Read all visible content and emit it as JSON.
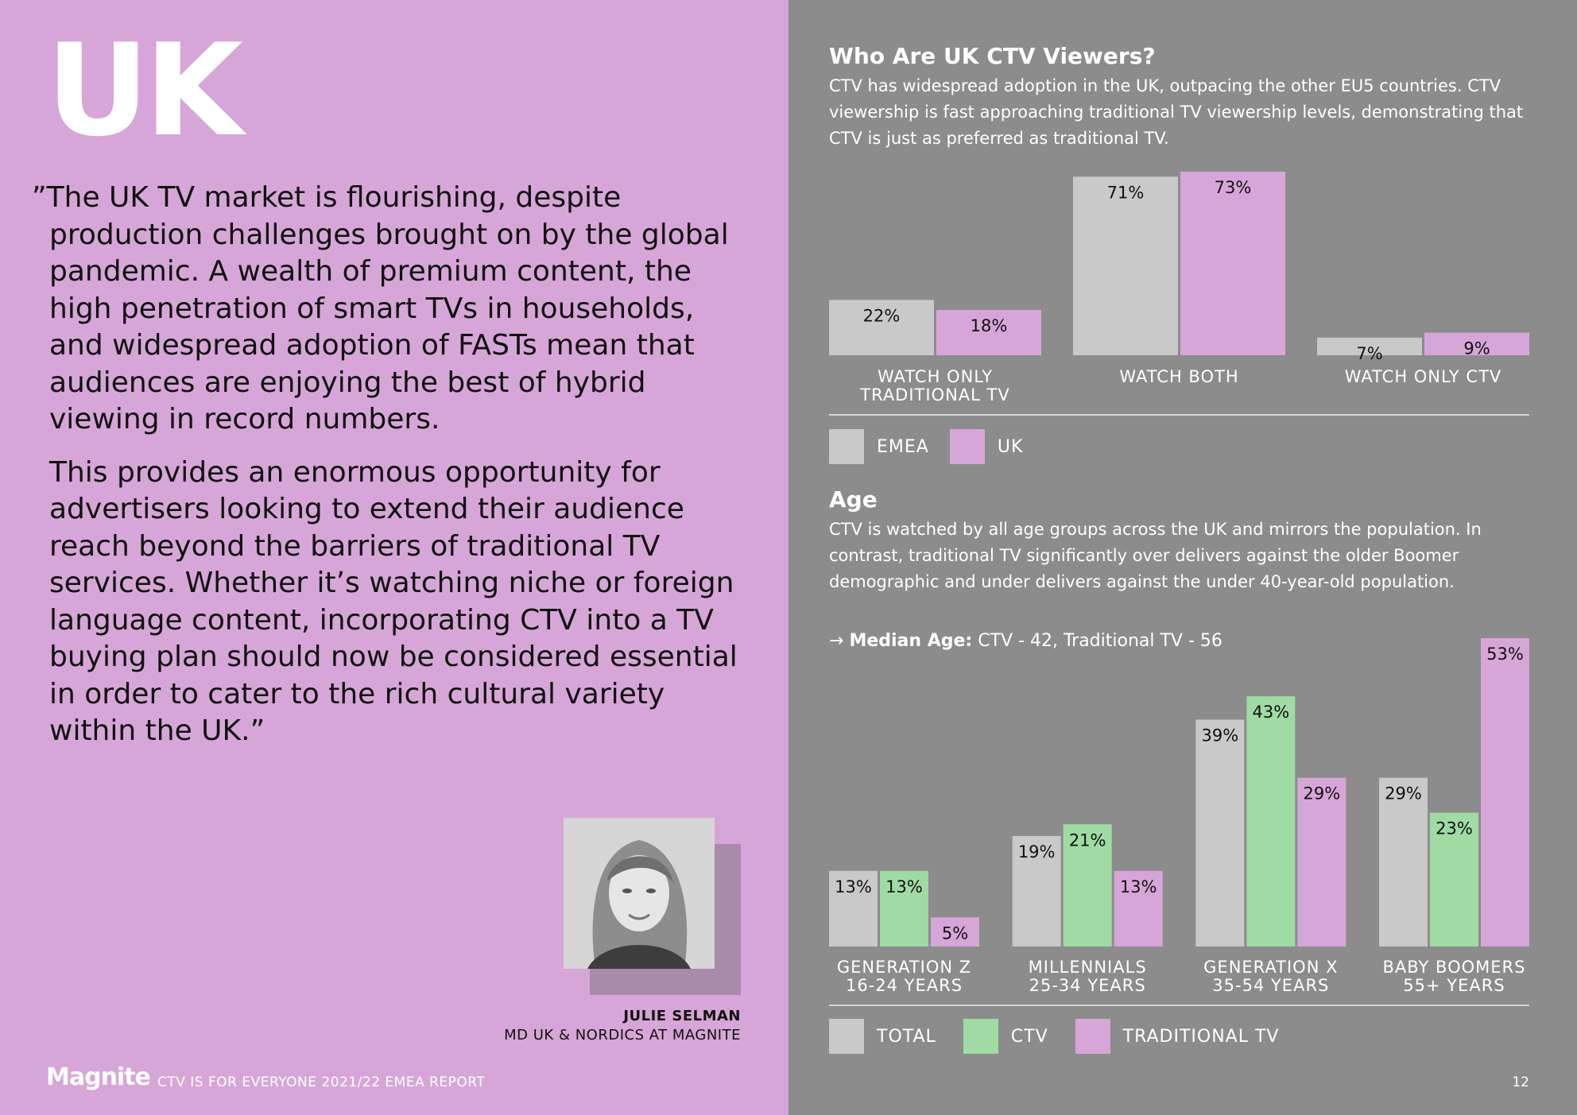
{
  "left": {
    "title": "UK",
    "quote_p1": "”The UK TV market is flourishing, despite production challenges brought on by the global pandemic. A wealth of premium content, the high penetration of smart TVs in households, and widespread adoption of FASTs mean that audiences are enjoying the best of hybrid viewing in record numbers.",
    "quote_p2": "This provides an enormous opportunity for advertisers looking to extend their audience reach beyond the barriers of traditional TV services. Whether it’s watching niche or foreign language content, incorporating CTV into a TV buying plan should now be considered essential in order to cater to the rich cultural variety within the UK.”",
    "person_name": "JULIE SELMAN",
    "person_role": "MD UK & NORDICS AT MAGNITE",
    "logo": "Magnite",
    "footer": "CTV IS FOR EVERYONE 2021/22 EMEA REPORT"
  },
  "right": {
    "section1_title": "Who Are UK CTV Viewers?",
    "section1_text": "CTV has widespread adoption in the UK, outpacing the other EU5 countries. CTV viewership is fast approaching traditional TV viewership levels, demonstrating that CTV is just as preferred as traditional TV.",
    "section2_title": "Age",
    "section2_text": "CTV is watched by all age groups across the UK and mirrors the population. In contrast, traditional TV significantly over delivers against the older Boomer demographic and under delivers against the under 40-year-old population.",
    "median_arrow": "→",
    "median_label": "Median Age:",
    "median_value": " CTV - 42, Traditional TV - 56",
    "page_number": "12"
  },
  "chart_data": [
    {
      "type": "bar",
      "title": "Who Are UK CTV Viewers?",
      "categories": [
        [
          "WATCH ONLY",
          "TRADITIONAL TV"
        ],
        [
          "WATCH BOTH"
        ],
        [
          "WATCH ONLY CTV"
        ]
      ],
      "series": [
        {
          "name": "EMEA",
          "color": "#c9c9c9",
          "values": [
            22,
            71,
            7
          ],
          "labels": [
            "22%",
            "71%",
            "7%"
          ]
        },
        {
          "name": "UK",
          "color": "#d7a6d8",
          "values": [
            18,
            73,
            9
          ],
          "labels": [
            "18%",
            "73%",
            "9%"
          ]
        }
      ],
      "ylim": [
        0,
        73
      ],
      "legend": "bottom-left"
    },
    {
      "type": "bar",
      "title": "Age",
      "categories": [
        [
          "GENERATION Z",
          "16-24 YEARS"
        ],
        [
          "MILLENNIALS",
          "25-34 YEARS"
        ],
        [
          "GENERATION X",
          "35-54 YEARS"
        ],
        [
          "BABY BOOMERS",
          "55+ YEARS"
        ]
      ],
      "series": [
        {
          "name": "TOTAL",
          "color": "#c9c9c9",
          "values": [
            13,
            19,
            39,
            29
          ],
          "labels": [
            "13%",
            "19%",
            "39%",
            "29%"
          ]
        },
        {
          "name": "CTV",
          "color": "#a0dba4",
          "values": [
            13,
            21,
            43,
            23
          ],
          "labels": [
            "13%",
            "21%",
            "43%",
            "23%"
          ]
        },
        {
          "name": "TRADITIONAL TV",
          "color": "#d7a6d8",
          "values": [
            5,
            13,
            29,
            53
          ],
          "labels": [
            "5%",
            "13%",
            "29%",
            "53%"
          ]
        }
      ],
      "ylim": [
        0,
        53
      ],
      "legend": "bottom-left"
    }
  ]
}
